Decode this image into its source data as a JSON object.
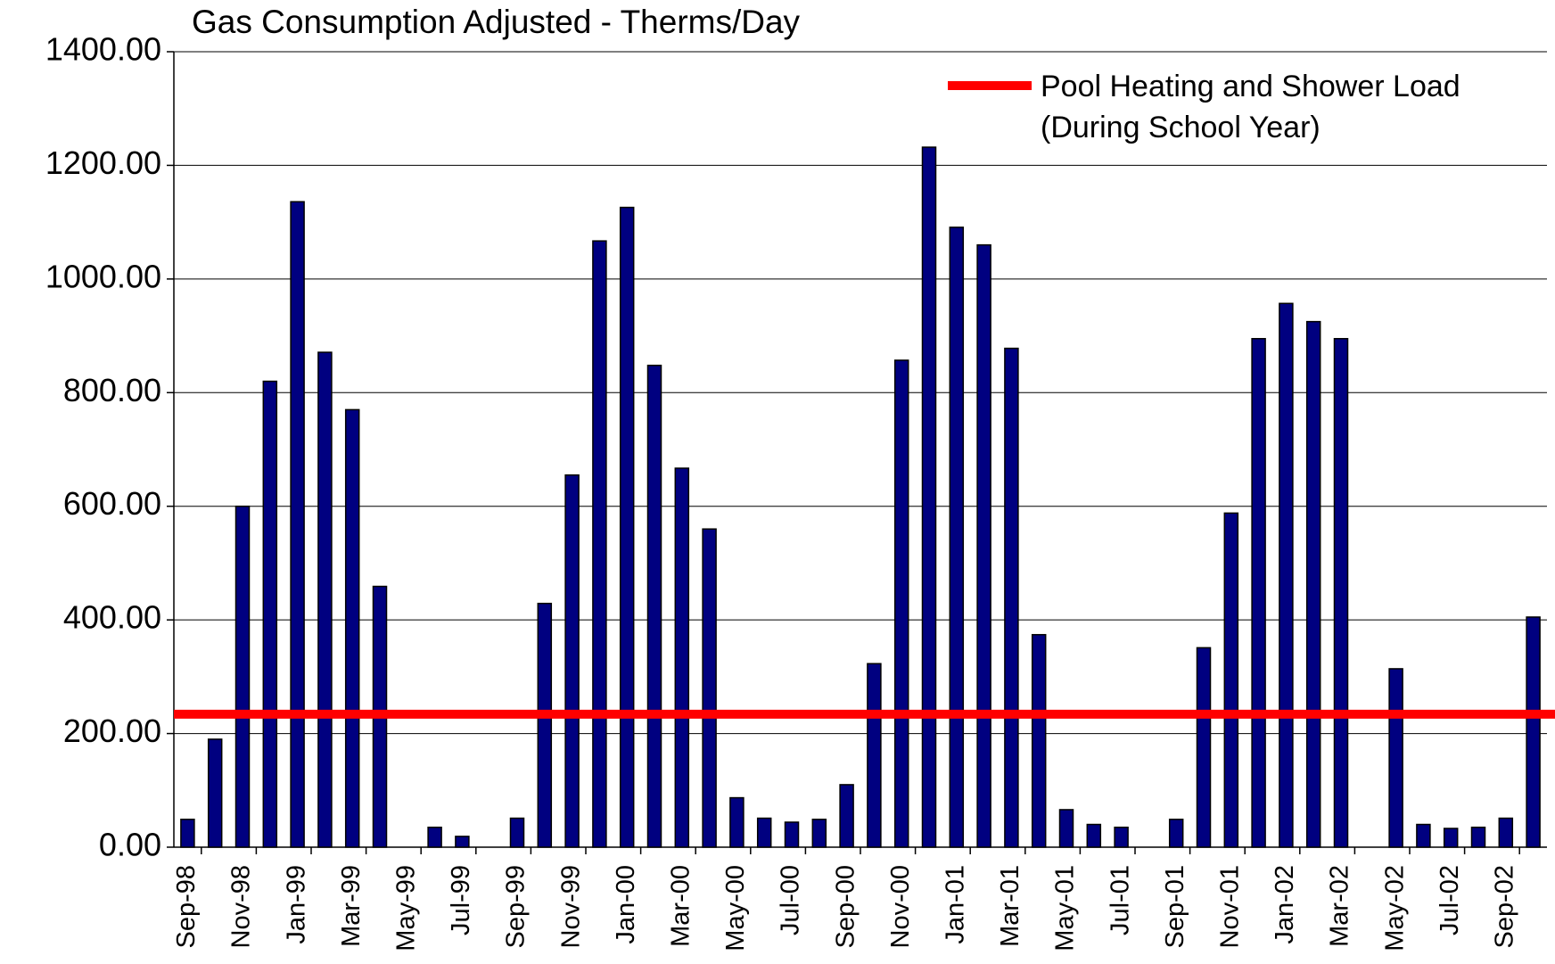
{
  "chart_data": {
    "type": "bar",
    "title": "Gas Consumption Adjusted - Therms/Day",
    "categories": [
      "Sep-98",
      null,
      "Nov-98",
      null,
      "Jan-99",
      null,
      "Mar-99",
      null,
      "May-99",
      null,
      "Jul-99",
      null,
      "Sep-99",
      null,
      "Nov-99",
      null,
      "Jan-00",
      null,
      "Mar-00",
      null,
      "May-00",
      null,
      "Jul-00",
      null,
      "Sep-00",
      null,
      "Nov-00",
      null,
      "Jan-01",
      null,
      "Mar-01",
      null,
      "May-01",
      null,
      "Jul-01",
      null,
      "Sep-01",
      null,
      "Nov-01",
      null,
      "Jan-02",
      null,
      "Mar-02",
      null,
      "May-02",
      null,
      "Jul-02",
      null,
      "Sep-02",
      null
    ],
    "values": [
      49,
      190,
      600,
      820,
      1136,
      871,
      770,
      459,
      0,
      35,
      19,
      0,
      51,
      429,
      655,
      1067,
      1126,
      848,
      667,
      560,
      87,
      51,
      44,
      49,
      110,
      323,
      857,
      1232,
      1091,
      1060,
      878,
      374,
      66,
      40,
      35,
      0,
      49,
      351,
      588,
      895,
      957,
      925,
      895,
      0,
      314,
      40,
      33,
      35,
      51,
      405
    ],
    "color": "#000080",
    "ylim": [
      0,
      1400
    ],
    "yticks": [
      {
        "value": 0,
        "label": "0.00"
      },
      {
        "value": 200,
        "label": "200.00"
      },
      {
        "value": 400,
        "label": "400.00"
      },
      {
        "value": 600,
        "label": "600.00"
      },
      {
        "value": 800,
        "label": "800.00"
      },
      {
        "value": 1000,
        "label": "1000.00"
      },
      {
        "value": 1200,
        "label": "1200.00"
      },
      {
        "value": 1400,
        "label": "1400.00"
      }
    ],
    "grid": true,
    "reference_line": {
      "name": [
        "Pool Heating and Shower Load",
        "(During School Year)"
      ],
      "value": 234,
      "color": "#ff0000"
    },
    "legend": "upper right"
  }
}
